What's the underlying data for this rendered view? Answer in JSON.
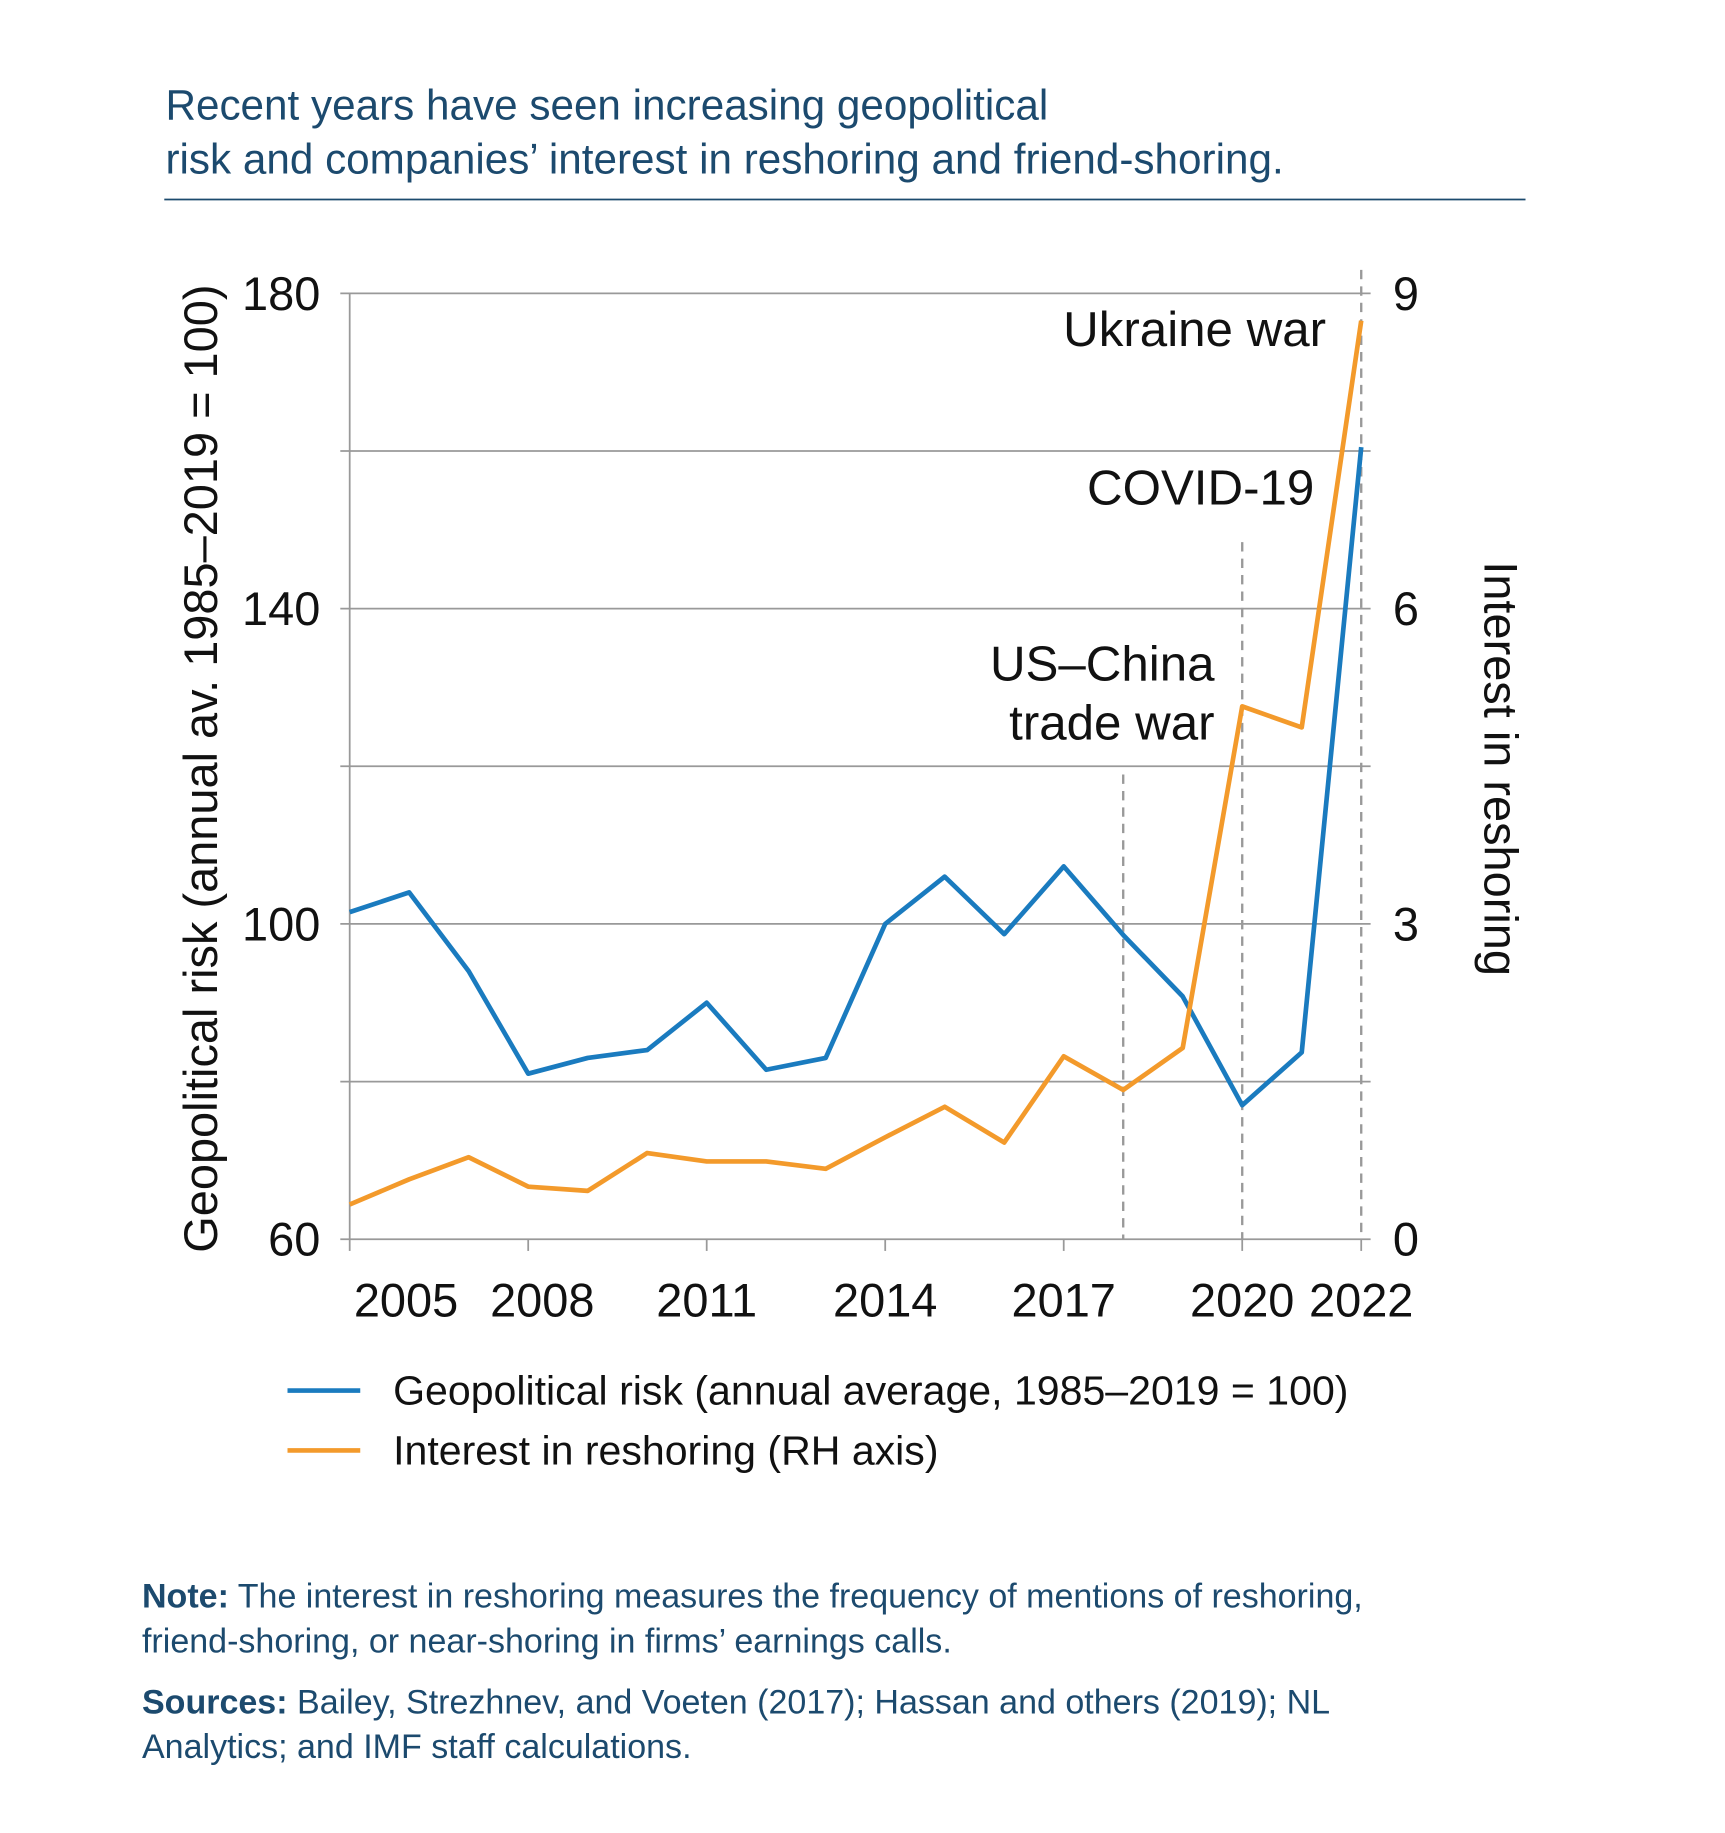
{
  "chart_data": {
    "type": "line",
    "title": [
      "Recent years have seen increasing geopolitical",
      "risk and companies’ interest in reshoring and friend-shoring."
    ],
    "ylabel": "Geopolitical risk (annual av. 1985–2019 = 100)",
    "y2label": "Interest in reshoring",
    "x": [
      2005,
      2006,
      2007,
      2008,
      2009,
      2010,
      2011,
      2012,
      2013,
      2014,
      2015,
      2016,
      2017,
      2018,
      2019,
      2020,
      2021,
      2022
    ],
    "xlim": [
      2005,
      2022
    ],
    "xticks": [
      2005,
      2008,
      2011,
      2014,
      2017,
      2020,
      2022
    ],
    "ylim": [
      60,
      180
    ],
    "yticks": [
      60,
      100,
      140,
      180
    ],
    "y_minor_ticks": [
      80,
      120,
      160
    ],
    "y2lim": [
      0,
      9
    ],
    "y2ticks": [
      0,
      3,
      6,
      9
    ],
    "grid": true,
    "series": [
      {
        "name": "Geopolitical risk (annual average, 1985–2019 = 100)",
        "color": "#1a7bbf",
        "values": [
          101.5,
          104,
          94,
          81,
          83,
          84,
          90,
          81.5,
          83,
          100,
          106,
          98.7,
          107.3,
          98.6,
          90.8,
          77,
          83.7,
          160.5
        ]
      },
      {
        "name": "Interest in reshoring (RH axis)",
        "color": "#f39a2b",
        "axis": "y2",
        "values": [
          0.33,
          0.57,
          0.78,
          0.5,
          0.46,
          0.82,
          0.74,
          0.74,
          0.67,
          0.97,
          1.26,
          0.92,
          1.74,
          1.42,
          1.82,
          5.07,
          4.87,
          8.74
        ]
      }
    ],
    "annotations": [
      {
        "text": [
          "US–China",
          "trade war"
        ],
        "x": 2018
      },
      {
        "text": [
          "COVID-19"
        ],
        "x": 2020
      },
      {
        "text": [
          "Ukraine war"
        ],
        "x": 2022
      }
    ],
    "note": {
      "label": "Note:",
      "text": [
        " The interest in reshoring measures the frequency of mentions of reshoring,",
        "friend-shoring, or near-shoring in firms’ earnings calls."
      ]
    },
    "sources": {
      "label": "Sources:",
      "text": [
        " Bailey, Strezhnev, and Voeten (2017); Hassan and others (2019); NL",
        "Analytics; and IMF staff calculations."
      ]
    }
  }
}
